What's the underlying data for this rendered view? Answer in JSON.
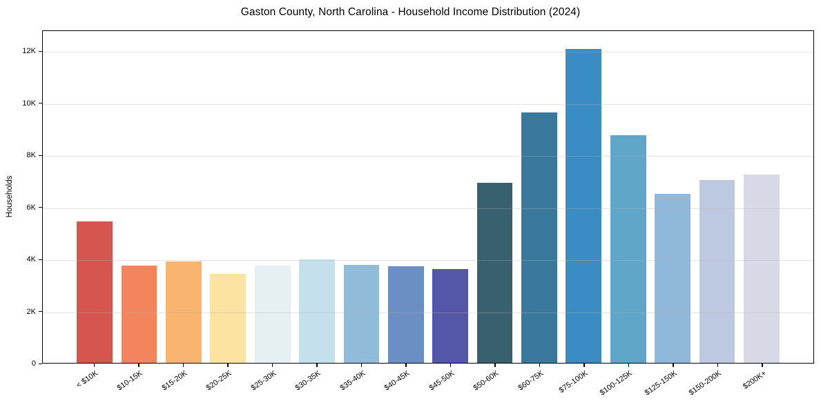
{
  "title": "Gaston County, North Carolina - Household Income Distribution (2024)",
  "ylabel": "Households",
  "chart_data": {
    "type": "bar",
    "title": "Gaston County, North Carolina - Household Income Distribution (2024)",
    "xlabel": "",
    "ylabel": "Households",
    "ylim": [
      0,
      12800
    ],
    "grid": "horizontal",
    "legend": "none",
    "categories": [
      "< $10K",
      "$10-15K",
      "$15-20K",
      "$20-25K",
      "$25-30K",
      "$30-35K",
      "$35-40K",
      "$40-45K",
      "$45-50K",
      "$50-60K",
      "$60-75K",
      "$75-100K",
      "$100-125K",
      "$125-150K",
      "$150-200K",
      "$200K+"
    ],
    "values": [
      5460,
      3760,
      3920,
      3420,
      3760,
      4000,
      3790,
      3730,
      3630,
      6950,
      9660,
      12100,
      8790,
      6530,
      7060,
      7270
    ],
    "bar_colors": [
      "#d6564f",
      "#f4845e",
      "#f9b46f",
      "#fce3a2",
      "#e5f0f3",
      "#c4e0ec",
      "#90bbd9",
      "#6b8fc3",
      "#5457a7",
      "#38606f",
      "#38799c",
      "#398cc4",
      "#5fa6c8",
      "#90b8da",
      "#bdc9e1",
      "#d7d9e6"
    ],
    "yticks": [
      {
        "label": "0",
        "value": 0
      },
      {
        "label": "2K",
        "value": 2000
      },
      {
        "label": "4K",
        "value": 4000
      },
      {
        "label": "6K",
        "value": 6000
      },
      {
        "label": "8K",
        "value": 8000
      },
      {
        "label": "10K",
        "value": 10000
      },
      {
        "label": "12K",
        "value": 12000
      }
    ]
  }
}
